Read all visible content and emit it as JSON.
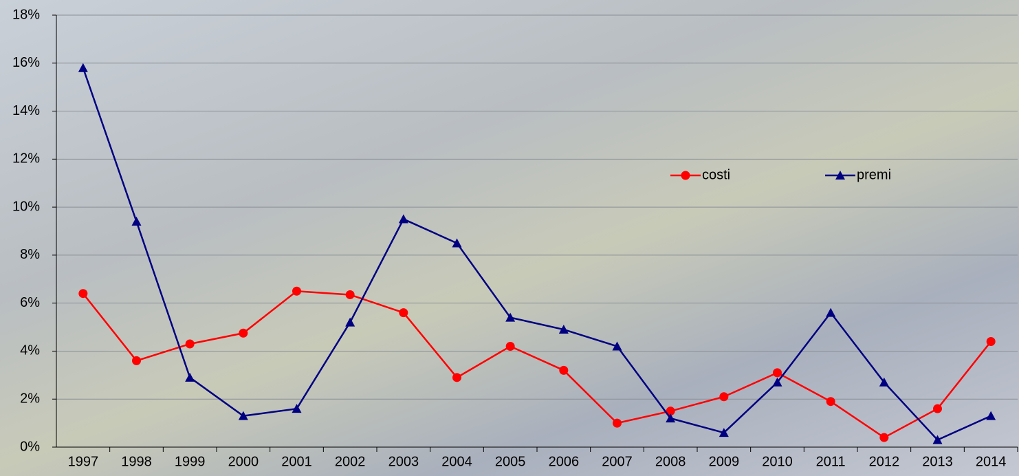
{
  "chart_data": {
    "type": "line",
    "categories": [
      "1997",
      "1998",
      "1999",
      "2000",
      "2001",
      "2002",
      "2003",
      "2004",
      "2005",
      "2006",
      "2007",
      "2008",
      "2009",
      "2010",
      "2011",
      "2012",
      "2013",
      "2014"
    ],
    "series": [
      {
        "name": "costi",
        "color": "#ff0000",
        "marker": "circle",
        "values": [
          6.4,
          3.6,
          4.3,
          4.75,
          6.5,
          6.35,
          5.6,
          2.9,
          4.2,
          3.2,
          1.0,
          1.5,
          2.1,
          3.1,
          1.9,
          0.4,
          1.6,
          4.4
        ]
      },
      {
        "name": "premi",
        "color": "#000080",
        "marker": "triangle",
        "values": [
          15.8,
          9.4,
          2.9,
          1.3,
          1.6,
          5.2,
          9.5,
          8.5,
          5.4,
          4.9,
          4.2,
          1.2,
          0.6,
          2.7,
          5.6,
          2.7,
          0.3,
          1.3
        ]
      }
    ],
    "ylim": [
      0,
      18
    ],
    "yticks": [
      {
        "value": 0,
        "label": "0%"
      },
      {
        "value": 2,
        "label": "2%"
      },
      {
        "value": 4,
        "label": "4%"
      },
      {
        "value": 6,
        "label": "6%"
      },
      {
        "value": 8,
        "label": "8%"
      },
      {
        "value": 10,
        "label": "10%"
      },
      {
        "value": 12,
        "label": "12%"
      },
      {
        "value": 14,
        "label": "14%"
      },
      {
        "value": 16,
        "label": "16%"
      },
      {
        "value": 18,
        "label": "18%"
      }
    ],
    "grid": true
  }
}
